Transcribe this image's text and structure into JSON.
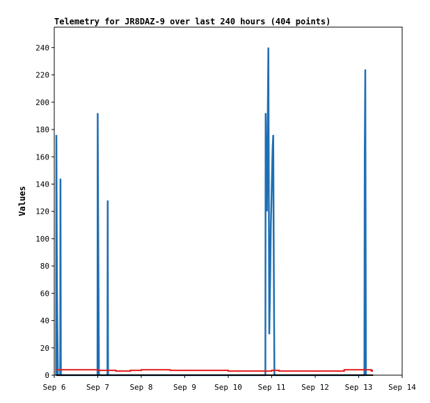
{
  "chart_data": {
    "type": "line",
    "title": "Telemetry for JR8DAZ-9 over last 240 hours (404 points)",
    "xlabel": "",
    "ylabel": "Values",
    "x_axis": {
      "type": "date",
      "range": [
        "2024-09-06",
        "2024-09-14"
      ],
      "ticks": [
        "Sep 6",
        "Sep 7",
        "Sep 8",
        "Sep 9",
        "Sep 10",
        "Sep 11",
        "Sep 12",
        "Sep 13",
        "Sep 14"
      ]
    },
    "y_axis": {
      "range": [
        0,
        255
      ],
      "ticks": [
        "0",
        "20",
        "40",
        "60",
        "80",
        "100",
        "120",
        "140",
        "160",
        "180",
        "200",
        "220",
        "240"
      ]
    },
    "grid": false,
    "legend": "none",
    "series": [
      {
        "color": "#1f6fb4",
        "style": "spikes",
        "points": [
          [
            "2024-09-06 01:00",
            0
          ],
          [
            "2024-09-06 01:10",
            176
          ],
          [
            "2024-09-06 01:30",
            64
          ],
          [
            "2024-09-06 02:00",
            0
          ],
          [
            "2024-09-06 03:15",
            0
          ],
          [
            "2024-09-06 03:25",
            144
          ],
          [
            "2024-09-06 03:40",
            0
          ],
          [
            "2024-09-06 23:50",
            0
          ],
          [
            "2024-09-06 23:58",
            192
          ],
          [
            "2024-09-07 00:20",
            80
          ],
          [
            "2024-09-07 00:40",
            0
          ],
          [
            "2024-09-07 05:20",
            0
          ],
          [
            "2024-09-07 05:30",
            128
          ],
          [
            "2024-09-07 05:40",
            0
          ],
          [
            "2024-09-10 20:30",
            0
          ],
          [
            "2024-09-10 20:40",
            192
          ],
          [
            "2024-09-10 21:00",
            128
          ],
          [
            "2024-09-10 21:20",
            120
          ],
          [
            "2024-09-10 22:10",
            240
          ],
          [
            "2024-09-10 22:40",
            30
          ],
          [
            "2024-09-10 23:10",
            70
          ],
          [
            "2024-09-10 23:30",
            108
          ],
          [
            "2024-09-10 23:50",
            128
          ],
          [
            "2024-09-11 00:10",
            146
          ],
          [
            "2024-09-11 00:30",
            166
          ],
          [
            "2024-09-11 00:50",
            176
          ],
          [
            "2024-09-11 01:10",
            80
          ],
          [
            "2024-09-11 01:30",
            0
          ],
          [
            "2024-09-13 03:10",
            0
          ],
          [
            "2024-09-13 03:20",
            160
          ],
          [
            "2024-09-13 03:40",
            224
          ],
          [
            "2024-09-13 04:00",
            0
          ]
        ]
      },
      {
        "color": "#e31a1c",
        "style": "step",
        "points": [
          [
            "2024-09-06 01:00",
            4
          ],
          [
            "2024-09-06 23:50",
            4
          ],
          [
            "2024-09-07 00:00",
            3.5
          ],
          [
            "2024-09-07 06:00",
            3.5
          ],
          [
            "2024-09-07 10:00",
            3
          ],
          [
            "2024-09-07 18:00",
            3.5
          ],
          [
            "2024-09-08 00:00",
            4
          ],
          [
            "2024-09-08 14:00",
            4
          ],
          [
            "2024-09-08 16:00",
            3.5
          ],
          [
            "2024-09-09 20:00",
            3.5
          ],
          [
            "2024-09-10 00:00",
            3
          ],
          [
            "2024-09-10 20:00",
            3
          ],
          [
            "2024-09-11 00:00",
            3.5
          ],
          [
            "2024-09-11 04:00",
            3
          ],
          [
            "2024-09-12 10:00",
            3
          ],
          [
            "2024-09-12 16:00",
            4
          ],
          [
            "2024-09-13 06:00",
            4
          ],
          [
            "2024-09-13 07:00",
            3
          ],
          [
            "2024-09-13 07:30",
            4
          ]
        ]
      },
      {
        "color": "#000000",
        "style": "line",
        "points": [
          [
            "2024-09-06 01:00",
            0
          ],
          [
            "2024-09-13 08:00",
            0
          ]
        ]
      }
    ]
  }
}
